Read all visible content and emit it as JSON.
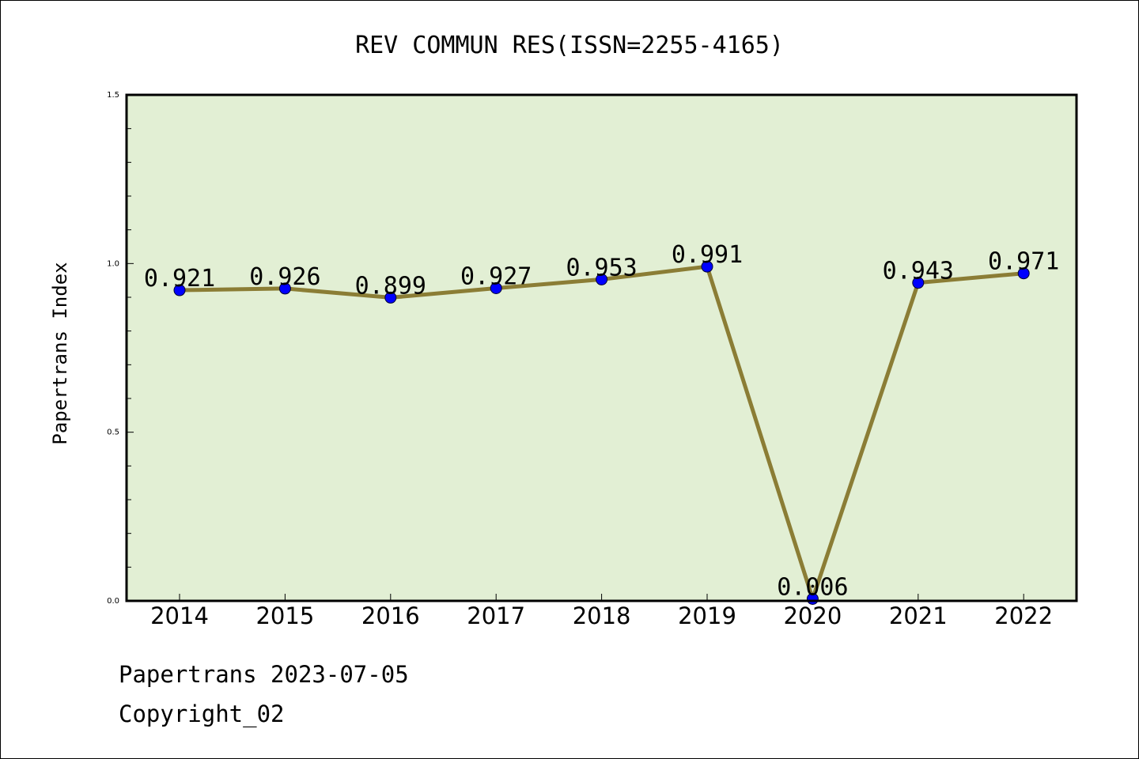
{
  "chart_data": {
    "type": "line",
    "title": "REV COMMUN RES(ISSN=2255-4165)",
    "xlabel": "",
    "ylabel": "Papertrans Index",
    "categories": [
      "2014",
      "2015",
      "2016",
      "2017",
      "2018",
      "2019",
      "2020",
      "2021",
      "2022"
    ],
    "series": [
      {
        "values": [
          0.921,
          0.926,
          0.899,
          0.927,
          0.953,
          0.991,
          0.006,
          0.943,
          0.971
        ],
        "labels": [
          "0.921",
          "0.926",
          "0.899",
          "0.927",
          "0.953",
          "0.991",
          "0.006",
          "0.943",
          "0.971"
        ],
        "line_color": "#8b7d35",
        "marker_color": "#0000ff"
      }
    ],
    "ylim": [
      0.0,
      1.5
    ],
    "yticks": [
      0.0,
      0.5,
      1.0,
      1.5
    ],
    "ytick_labels": [
      "0.0",
      "0.5",
      "1.0",
      "1.5"
    ],
    "y_minor_step": 0.1,
    "grid": false,
    "plot_background": "#e2efd4"
  },
  "footer": {
    "date_line": "Papertrans 2023-07-05",
    "copyright": "Copyright_02"
  }
}
